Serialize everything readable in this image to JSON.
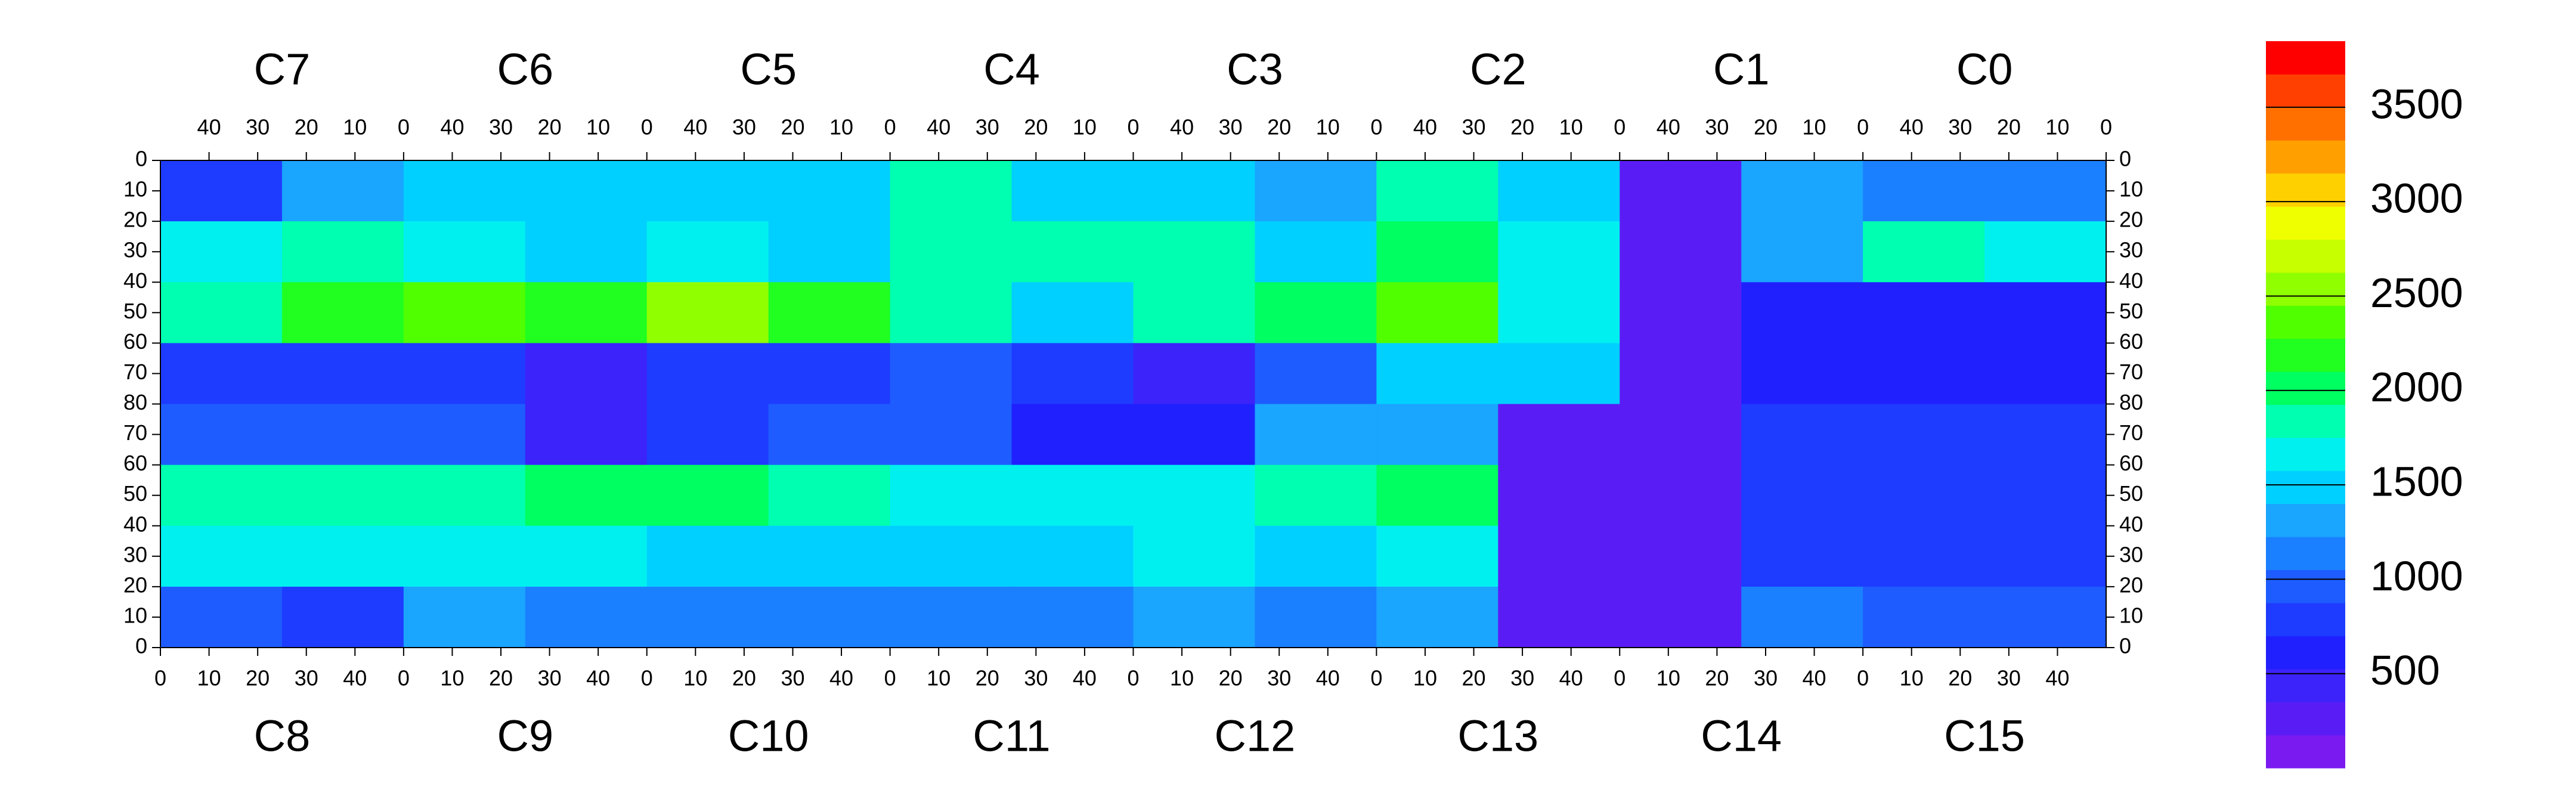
{
  "chart_data": {
    "type": "heatmap",
    "top_chips": [
      "C7",
      "C6",
      "C5",
      "C4",
      "C3",
      "C2",
      "C1",
      "C0"
    ],
    "bottom_chips": [
      "C8",
      "C9",
      "C10",
      "C11",
      "C12",
      "C13",
      "C14",
      "C15"
    ],
    "chip_xlim": [
      0,
      50
    ],
    "xticks": [
      0,
      10,
      20,
      30,
      40
    ],
    "half_ylim": [
      0,
      80
    ],
    "yticks_top": [
      0,
      10,
      20,
      30,
      40,
      50,
      60,
      70,
      80
    ],
    "yticks_bottom": [
      70,
      60,
      50,
      40,
      30,
      20,
      10,
      0
    ],
    "zlim": [
      0,
      3850
    ],
    "zticks": [
      500,
      1000,
      1500,
      2000,
      2500,
      3000,
      3500
    ],
    "colors": [
      "#7a1af0",
      "#5a1cf5",
      "#3c23fa",
      "#2020ff",
      "#1e3cff",
      "#1e5cff",
      "#1a80ff",
      "#1aa5ff",
      "#00d0ff",
      "#00f0f0",
      "#00ffb0",
      "#00ff60",
      "#20ff20",
      "#50ff00",
      "#90ff00",
      "#c8ff00",
      "#f0ff00",
      "#ffd000",
      "#ffa000",
      "#ff7000",
      "#ff4000",
      "#ff0000"
    ],
    "z": [
      [
        800,
        1300,
        1500,
        1400,
        1500,
        1400,
        1800,
        1400,
        1400,
        1300,
        1800,
        1400,
        200,
        1300,
        1200,
        1200
      ],
      [
        1700,
        1900,
        1600,
        1500,
        1700,
        1500,
        1800,
        1900,
        1800,
        1400,
        2000,
        1700,
        200,
        1300,
        1800,
        1600
      ],
      [
        1900,
        2100,
        2300,
        2200,
        2600,
        2100,
        1900,
        1400,
        1800,
        2000,
        2300,
        1600,
        200,
        600,
        600,
        600
      ],
      [
        700,
        700,
        800,
        400,
        800,
        800,
        900,
        700,
        500,
        900,
        1400,
        1500,
        200,
        600,
        600,
        600
      ],
      [
        900,
        1000,
        1000,
        500,
        700,
        1000,
        900,
        600,
        600,
        1300,
        1300,
        300,
        300,
        700,
        700,
        700
      ],
      [
        1800,
        1800,
        1900,
        2000,
        2000,
        1800,
        1600,
        1700,
        1700,
        1800,
        2000,
        300,
        300,
        700,
        700,
        700
      ],
      [
        1700,
        1700,
        1600,
        1600,
        1500,
        1500,
        1500,
        1500,
        1700,
        1400,
        1700,
        300,
        300,
        800,
        800,
        800
      ],
      [
        900,
        800,
        1300,
        1100,
        1200,
        1100,
        1200,
        1200,
        1300,
        1200,
        1300,
        300,
        300,
        1100,
        1000,
        1000
      ]
    ]
  }
}
